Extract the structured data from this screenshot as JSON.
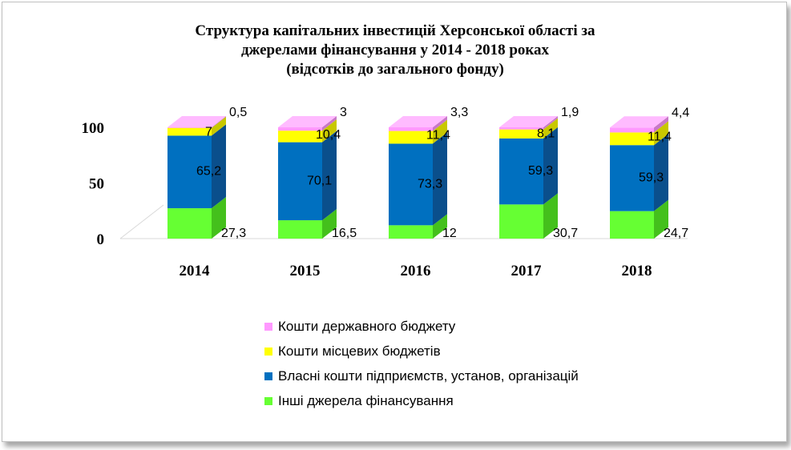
{
  "chart_data": {
    "type": "bar",
    "stacked": true,
    "style": "3d",
    "title": [
      "Структура  капітальних інвестицій Херсонської області за",
      "джерелами фінансування у 2014 - 2018 роках",
      "(відсотків до загального фонду)"
    ],
    "categories": [
      "2014",
      "2015",
      "2016",
      "2017",
      "2018"
    ],
    "series": [
      {
        "name": "Інші джерела фінансування",
        "color": "#66ff33",
        "values": [
          27.3,
          16.5,
          12,
          30.7,
          24.7
        ],
        "labels": [
          "27,3",
          "16,5",
          "12",
          "30,7",
          "24,7"
        ]
      },
      {
        "name": "Власні кошти підприємств, установ, організацій",
        "color": "#0070c0",
        "values": [
          65.2,
          70.1,
          73.3,
          59.3,
          59.3
        ],
        "labels": [
          "65,2",
          "70,1",
          "73,3",
          "59,3",
          "59,3"
        ]
      },
      {
        "name": "Кошти місцевих бюджетів",
        "color": "#ffff00",
        "values": [
          7,
          10.4,
          11.4,
          8.1,
          11.4
        ],
        "labels": [
          "7",
          "10,4",
          "11,4",
          "8,1",
          "11,4"
        ]
      },
      {
        "name": "Кошти державного бюджету",
        "color": "#ff99ff",
        "values": [
          0.5,
          3,
          3.3,
          1.9,
          4.4
        ],
        "labels": [
          "0,5",
          "3",
          "3,3",
          "1,9",
          "4,4"
        ]
      }
    ],
    "ylim": [
      0,
      100
    ],
    "yticks": [
      "0",
      "50",
      "100"
    ],
    "grid": false,
    "legend_position": "bottom"
  }
}
